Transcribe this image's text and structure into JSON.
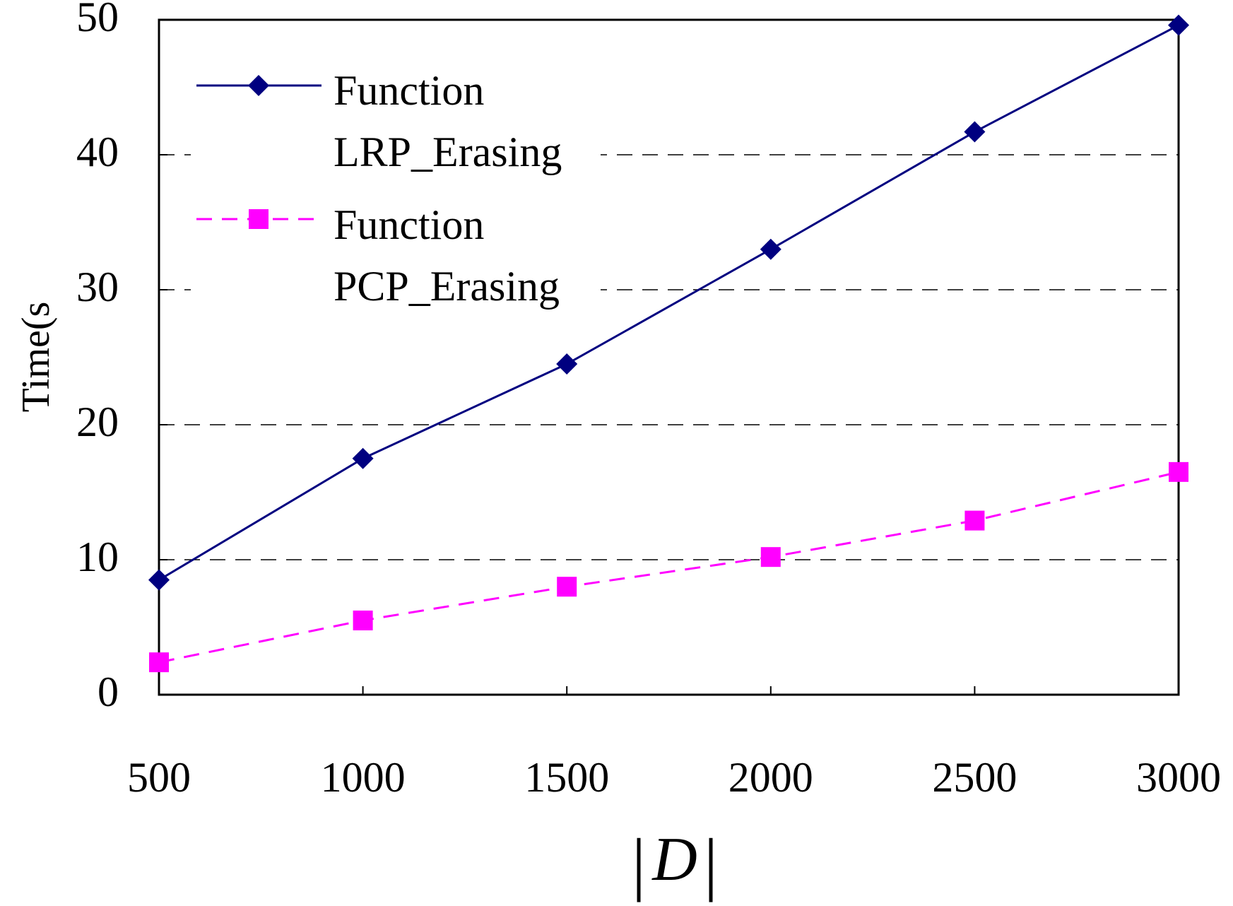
{
  "chart_data": {
    "type": "line",
    "title": "",
    "xlabel": "D",
    "ylabel": "Time(s",
    "x": [
      500,
      1000,
      1500,
      2000,
      2500,
      3000
    ],
    "xticks": [
      "500",
      "1000",
      "1500",
      "2000",
      "2500",
      "3000"
    ],
    "ylim": [
      0,
      50
    ],
    "yticks": [
      "0",
      "10",
      "20",
      "30",
      "40",
      "50"
    ],
    "grid": "horizontal-dashed",
    "legend_position": "top-left",
    "series": [
      {
        "name_line1": "Function",
        "name_line2": "LRP_Erasing",
        "values": [
          8.5,
          17.5,
          24.5,
          33.0,
          41.7,
          49.6
        ],
        "color": "#000080",
        "line_style": "solid",
        "marker": "diamond"
      },
      {
        "name_line1": "Function",
        "name_line2": "PCP_Erasing",
        "values": [
          2.4,
          5.5,
          8.0,
          10.2,
          12.9,
          16.5
        ],
        "color": "#ff00ff",
        "line_style": "dashed",
        "marker": "square"
      }
    ]
  }
}
